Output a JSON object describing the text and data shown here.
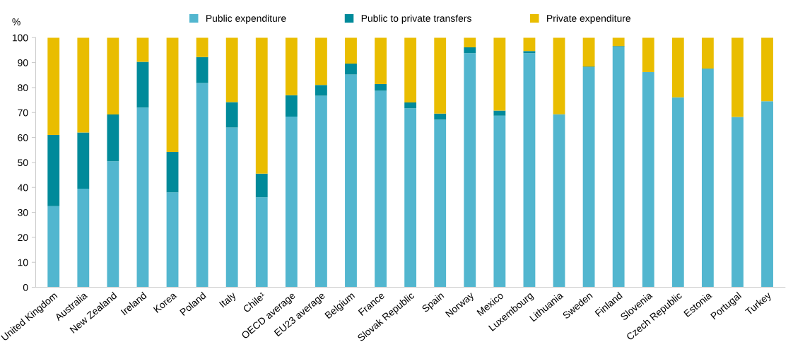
{
  "chart_data": {
    "type": "bar",
    "stacked": true,
    "ylabel": "%",
    "categories": [
      "United Kingdom",
      "Australia",
      "New Zealand",
      "Ireland",
      "Korea",
      "Poland",
      "Italy",
      "Chile¹",
      "OECD average",
      "EU23 average",
      "Belgium",
      "France",
      "Slovak Republic",
      "Spain",
      "Norway",
      "Mexico",
      "Luxembourg",
      "Lithuania",
      "Sweden",
      "Finland",
      "Slovenia",
      "Czech Republic",
      "Estonia",
      "Portugal",
      "Turkey"
    ],
    "series": [
      {
        "name": "Public expenditure",
        "color": "#52b6cf",
        "values": [
          32.5,
          39.5,
          50.5,
          72,
          38,
          81.8,
          64,
          36,
          68.4,
          76.7,
          85.2,
          78.7,
          71.7,
          67.2,
          93.8,
          68.7,
          93.8,
          69.3,
          88.2,
          96.4,
          86.2,
          76.1,
          87.6,
          68.2,
          74.5
        ]
      },
      {
        "name": "Public to private transfers",
        "color": "#008a9a",
        "values": [
          28.5,
          22.5,
          18.7,
          18.3,
          16.2,
          10.4,
          10.2,
          9.5,
          8.5,
          4.3,
          4.4,
          2.7,
          2.3,
          2.4,
          2.3,
          2.1,
          0.8,
          0,
          0.2,
          0.2,
          0,
          0,
          0,
          0,
          0
        ]
      },
      {
        "name": "Private expenditure",
        "color": "#e9bd00",
        "values": [
          39,
          38,
          30.8,
          9.7,
          45.8,
          7.8,
          25.8,
          54.5,
          23.1,
          19,
          10.4,
          18.6,
          26,
          30.4,
          3.9,
          29.2,
          5.4,
          30.7,
          11.6,
          3.4,
          13.8,
          23.9,
          12.4,
          31.8,
          25.5
        ]
      }
    ],
    "ylim": [
      0,
      100
    ],
    "yticks": [
      0,
      10,
      20,
      30,
      40,
      50,
      60,
      70,
      80,
      90,
      100
    ],
    "grid": false,
    "legend": "top"
  }
}
